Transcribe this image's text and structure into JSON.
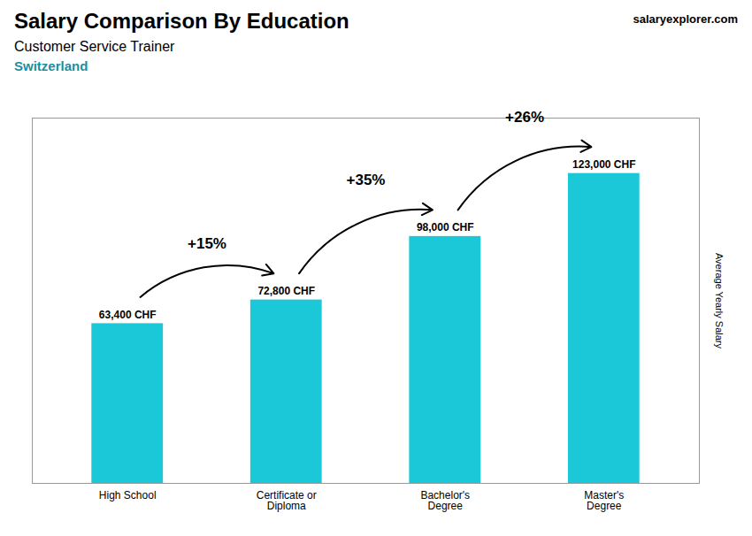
{
  "chart_data": {
    "type": "bar",
    "title": "Salary Comparison By Education",
    "subtitle": "Customer Service Trainer",
    "categories": [
      "High School",
      "Certificate or\nDiploma",
      "Bachelor's\nDegree",
      "Master's\nDegree"
    ],
    "values": [
      63400,
      72800,
      98000,
      123000
    ],
    "value_labels": [
      "63,400 CHF",
      "72,800 CHF",
      "98,000 CHF",
      "123,000 CHF"
    ],
    "data_labels": true,
    "color": "#1ac8d8",
    "ylabel": "Average Yearly Salary",
    "ylim": [
      0,
      145000
    ],
    "yticks": [],
    "tick_labels": "x",
    "grid": false,
    "annotations": [
      {
        "text": "+15%",
        "from": "High School",
        "to": "Certificate or\nDiploma"
      },
      {
        "text": "+35%",
        "from": "Certificate or\nDiploma",
        "to": "Bachelor's\nDegree"
      },
      {
        "text": "+26%",
        "from": "Bachelor's\nDegree",
        "to": "Master's\nDegree"
      },
      {
        "text": "Switzerland"
      },
      {
        "text": "salaryexplorer.com"
      }
    ]
  }
}
